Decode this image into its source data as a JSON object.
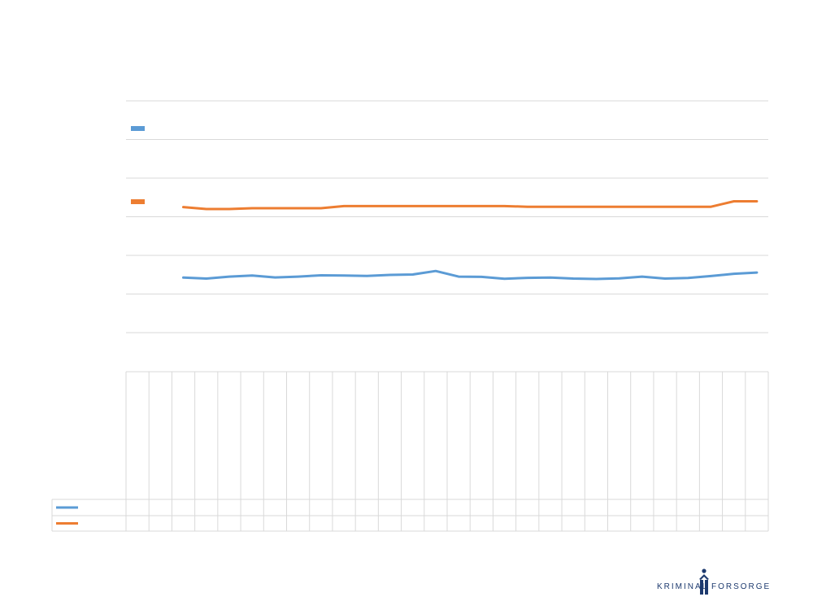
{
  "colors": {
    "series1": "#5b9bd5",
    "series2": "#ed7d31",
    "grid": "#d9d9d9",
    "logo": "#1d3a6e"
  },
  "chart_data": {
    "type": "line",
    "title": "",
    "xlabel": "",
    "ylabel": "",
    "grid": true,
    "legend_position": "left",
    "data_table": true,
    "categories_count": 28,
    "series": [
      {
        "color": "#5b9bd5",
        "values": [
          null,
          null,
          0.285,
          0.28,
          0.29,
          0.296,
          0.286,
          0.29,
          0.297,
          0.296,
          0.294,
          0.299,
          0.301,
          0.319,
          0.29,
          0.289,
          0.279,
          0.284,
          0.285,
          0.28,
          0.278,
          0.281,
          0.29,
          0.28,
          0.283,
          0.293,
          0.305,
          0.311
        ]
      },
      {
        "color": "#ed7d31",
        "values": [
          null,
          null,
          0.65,
          0.64,
          0.64,
          0.644,
          0.644,
          0.644,
          0.644,
          0.655,
          0.655,
          0.655,
          0.655,
          0.655,
          0.655,
          0.655,
          0.655,
          0.652,
          0.652,
          0.652,
          0.652,
          0.652,
          0.652,
          0.652,
          0.652,
          0.652,
          0.68,
          0.68
        ]
      }
    ],
    "ylim": [
      0,
      1.2
    ]
  },
  "logo": {
    "left_word": "KRIMINAL",
    "right_word": "FORSORGEN"
  }
}
